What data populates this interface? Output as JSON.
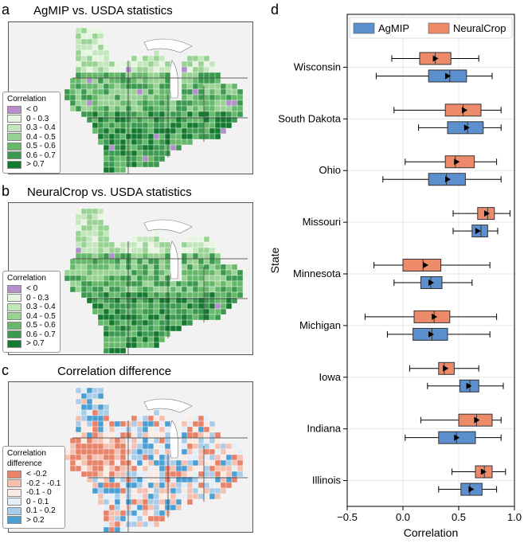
{
  "panels": {
    "a": {
      "letter": "a",
      "title": "AgMIP vs. USDA statistics"
    },
    "b": {
      "letter": "b",
      "title": "NeuralCrop vs. USDA statistics"
    },
    "c": {
      "letter": "c",
      "title": "Correlation difference"
    },
    "d": {
      "letter": "d"
    }
  },
  "legend_corr": {
    "title": "Correlation",
    "items": [
      {
        "label": "< 0",
        "color": "#b48fc9"
      },
      {
        "label": "0 - 0.3",
        "color": "#e6f4e0"
      },
      {
        "label": "0.3 - 0.4",
        "color": "#c4e6bc"
      },
      {
        "label": "0.4 - 0.5",
        "color": "#99d393"
      },
      {
        "label": "0.5 - 0.6",
        "color": "#66b96b"
      },
      {
        "label": "0.6 - 0.7",
        "color": "#3b9a4f"
      },
      {
        "label": "> 0.7",
        "color": "#137a2f"
      }
    ]
  },
  "legend_diff": {
    "title": "Correlation\ndifference",
    "title_line1": "Correlation",
    "title_line2": "difference",
    "items": [
      {
        "label": "< -0.2",
        "color": "#e8836a"
      },
      {
        "label": "-0.2 - -0.1",
        "color": "#f4c1b1"
      },
      {
        "label": "-0.1 - 0",
        "color": "#faeae4"
      },
      {
        "label": "0 - 0.1",
        "color": "#e3eef7"
      },
      {
        "label": "0.1 - 0.2",
        "color": "#a9cde8"
      },
      {
        "label": "> 0.2",
        "color": "#4a9fd3"
      }
    ]
  },
  "chart_data": {
    "type": "boxplot",
    "xlabel": "Correlation",
    "ylabel": "State",
    "xlim": [
      -0.5,
      1.0
    ],
    "xticks": [
      "−0.5",
      "0.0",
      "0.5",
      "1.0"
    ],
    "xtick_values": [
      -0.5,
      0.0,
      0.5,
      1.0
    ],
    "grid": true,
    "legend_position": "top",
    "series": [
      {
        "name": "AgMIP",
        "color": "#5b8fce"
      },
      {
        "name": "NeuralCrop",
        "color": "#ec8a6a"
      }
    ],
    "states": [
      {
        "name": "Wisconsin",
        "NeuralCrop": {
          "whislo": -0.1,
          "q1": 0.15,
          "med": 0.29,
          "q3": 0.43,
          "whishi": 0.68,
          "mean": 0.29
        },
        "AgMIP": {
          "whislo": -0.24,
          "q1": 0.23,
          "med": 0.42,
          "q3": 0.57,
          "whishi": 0.8,
          "mean": 0.4
        }
      },
      {
        "name": "South Dakota",
        "NeuralCrop": {
          "whislo": -0.08,
          "q1": 0.38,
          "med": 0.54,
          "q3": 0.7,
          "whishi": 0.88,
          "mean": 0.55
        },
        "AgMIP": {
          "whislo": 0.14,
          "q1": 0.4,
          "med": 0.58,
          "q3": 0.72,
          "whishi": 0.88,
          "mean": 0.57
        }
      },
      {
        "name": "Ohio",
        "NeuralCrop": {
          "whislo": 0.02,
          "q1": 0.38,
          "med": 0.47,
          "q3": 0.64,
          "whishi": 0.84,
          "mean": 0.48
        },
        "AgMIP": {
          "whislo": -0.18,
          "q1": 0.23,
          "med": 0.39,
          "q3": 0.56,
          "whishi": 0.88,
          "mean": 0.4
        }
      },
      {
        "name": "Missouri",
        "NeuralCrop": {
          "whislo": 0.45,
          "q1": 0.67,
          "med": 0.76,
          "q3": 0.82,
          "whishi": 0.96,
          "mean": 0.75
        },
        "AgMIP": {
          "whislo": 0.45,
          "q1": 0.62,
          "med": 0.7,
          "q3": 0.76,
          "whishi": 0.85,
          "mean": 0.67
        }
      },
      {
        "name": "Minnesota",
        "NeuralCrop": {
          "whislo": -0.26,
          "q1": 0.0,
          "med": 0.18,
          "q3": 0.34,
          "whishi": 0.78,
          "mean": 0.2
        },
        "AgMIP": {
          "whislo": -0.08,
          "q1": 0.16,
          "med": 0.25,
          "q3": 0.35,
          "whishi": 0.62,
          "mean": 0.25
        }
      },
      {
        "name": "Michigan",
        "NeuralCrop": {
          "whislo": -0.34,
          "q1": 0.1,
          "med": 0.28,
          "q3": 0.42,
          "whishi": 0.84,
          "mean": 0.28
        },
        "AgMIP": {
          "whislo": -0.14,
          "q1": 0.09,
          "med": 0.26,
          "q3": 0.4,
          "whishi": 0.78,
          "mean": 0.25
        }
      },
      {
        "name": "Iowa",
        "NeuralCrop": {
          "whislo": 0.06,
          "q1": 0.32,
          "med": 0.37,
          "q3": 0.46,
          "whishi": 0.68,
          "mean": 0.38
        },
        "AgMIP": {
          "whislo": 0.22,
          "q1": 0.51,
          "med": 0.6,
          "q3": 0.68,
          "whishi": 0.9,
          "mean": 0.59
        }
      },
      {
        "name": "Indiana",
        "NeuralCrop": {
          "whislo": 0.16,
          "q1": 0.5,
          "med": 0.66,
          "q3": 0.8,
          "whishi": 0.88,
          "mean": 0.66
        },
        "AgMIP": {
          "whislo": 0.02,
          "q1": 0.32,
          "med": 0.48,
          "q3": 0.65,
          "whishi": 0.88,
          "mean": 0.48
        }
      },
      {
        "name": "Illinois",
        "NeuralCrop": {
          "whislo": 0.44,
          "q1": 0.65,
          "med": 0.73,
          "q3": 0.8,
          "whishi": 0.92,
          "mean": 0.72
        },
        "AgMIP": {
          "whislo": 0.32,
          "q1": 0.52,
          "med": 0.6,
          "q3": 0.71,
          "whishi": 0.84,
          "mean": 0.61
        }
      }
    ]
  }
}
